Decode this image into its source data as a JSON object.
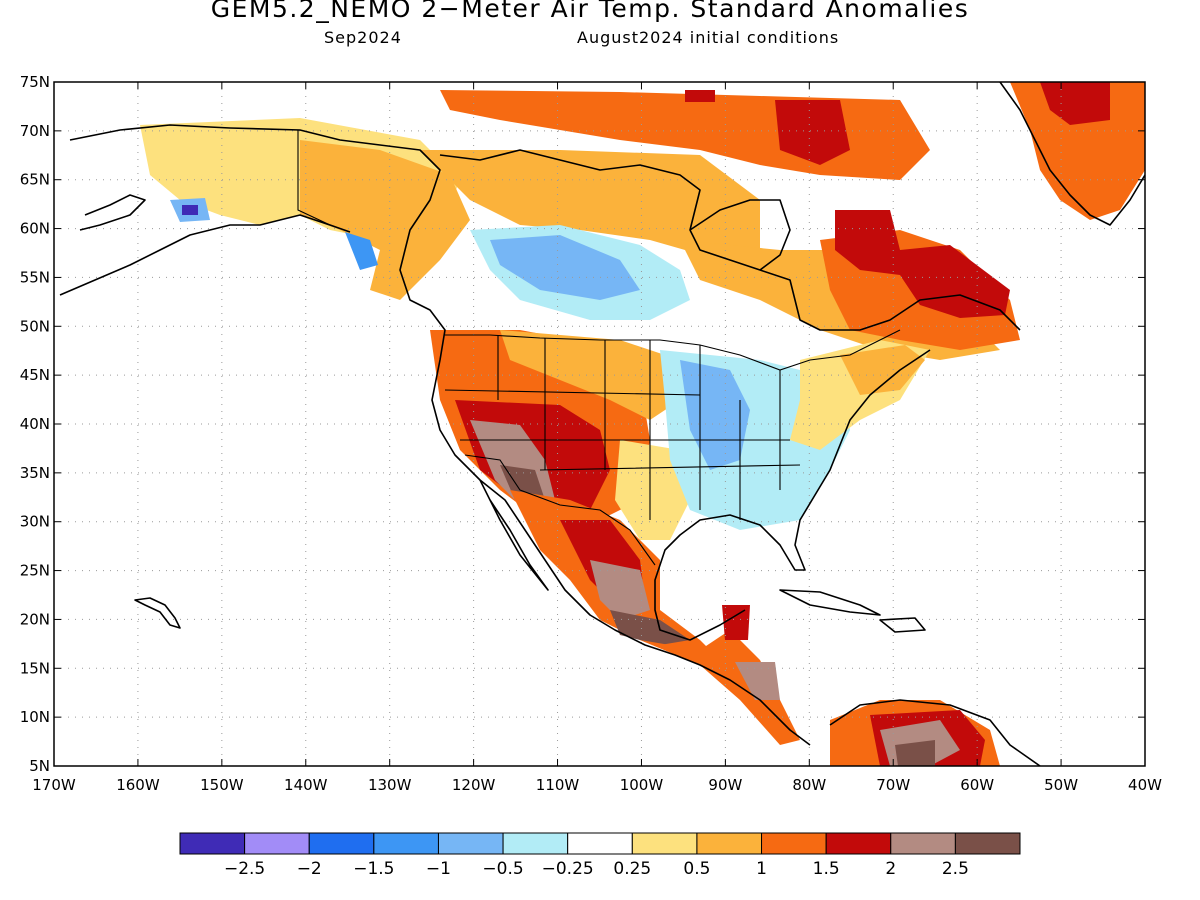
{
  "title": "GEM5.2_NEMO 2−Meter Air Temp. Standard Anomalies",
  "subtitle_left": "Sep2024",
  "subtitle_right": "August2024 initial conditions",
  "map": {
    "lon_range": [
      -170,
      -40
    ],
    "lat_range": [
      5,
      75
    ],
    "lat_labels": [
      "75N",
      "70N",
      "65N",
      "60N",
      "55N",
      "50N",
      "45N",
      "40N",
      "35N",
      "30N",
      "25N",
      "20N",
      "15N",
      "10N",
      "5N"
    ],
    "lon_labels": [
      "170W",
      "160W",
      "150W",
      "140W",
      "130W",
      "120W",
      "110W",
      "100W",
      "90W",
      "80W",
      "70W",
      "60W",
      "50W",
      "40W"
    ],
    "grid": true
  },
  "colorbar": {
    "colors": [
      "#3f2bb6",
      "#a28cf7",
      "#1f6ef0",
      "#3d96f4",
      "#76b6f5",
      "#b2ecf6",
      "#ffffff",
      "#fde17e",
      "#fbb23b",
      "#f66a12",
      "#c20a0a",
      "#b38b82",
      "#7a5048"
    ],
    "labels": [
      "−2.5",
      "−2",
      "−1.5",
      "−1",
      "−0.5",
      "−0.25",
      "0.25",
      "0.5",
      "1",
      "1.5",
      "2",
      "2.5"
    ]
  },
  "anomaly_regions": [
    {
      "name": "western-arctic-alaska",
      "level": "0.25-0.5"
    },
    {
      "name": "northern-canada",
      "level": "0.5-1.5"
    },
    {
      "name": "canadian-archipelago",
      "level": "1.5-2"
    },
    {
      "name": "quebec-labrador",
      "level": "1.5-2"
    },
    {
      "name": "greenland",
      "level": "1-2"
    },
    {
      "name": "central-canada",
      "level": "-1.5--0.25"
    },
    {
      "name": "us-west-mountain",
      "level": "1.5-2.5"
    },
    {
      "name": "us-southwest",
      "level": "2-3"
    },
    {
      "name": "us-midwest-south",
      "level": "-1--0.25"
    },
    {
      "name": "us-northeast",
      "level": "0.5-1"
    },
    {
      "name": "mexico-central-america",
      "level": "1-3"
    },
    {
      "name": "northern-south-america",
      "level": "1.5-3"
    }
  ]
}
